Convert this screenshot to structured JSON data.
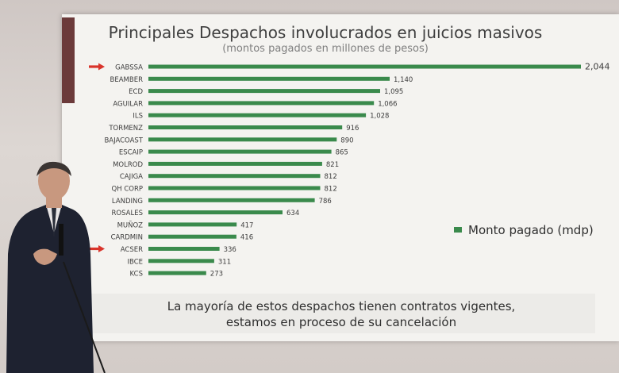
{
  "chart_data": {
    "type": "bar",
    "orientation": "horizontal",
    "title": "Principales Despachos involucrados en juicios masivos",
    "subtitle": "(montos pagados en millones de pesos)",
    "categories": [
      "GABSSA",
      "BEAMBER",
      "ECD",
      "AGUILAR",
      "ILS",
      "TORMENZ",
      "BAJACOAST",
      "ESCAIP",
      "MOLROD",
      "CAJIGA",
      "QH CORP",
      "LANDING",
      "ROSALES",
      "MUÑOZ",
      "CARDMIN",
      "ACSER",
      "IBCE",
      "KCS"
    ],
    "values": [
      2044,
      1140,
      1095,
      1066,
      1028,
      916,
      890,
      865,
      821,
      812,
      812,
      786,
      634,
      417,
      416,
      336,
      311,
      273
    ],
    "value_labels": [
      "2,044",
      "1,140",
      "1,095",
      "1,066",
      "1,028",
      "916",
      "890",
      "865",
      "821",
      "812",
      "812",
      "786",
      "634",
      "417",
      "416",
      "336",
      "311",
      "273"
    ],
    "series": [
      {
        "name": "Monto pagado (mdp)",
        "color": "#3a8a4c"
      }
    ],
    "legend": {
      "label": "Monto pagado (mdp)",
      "placement": "right"
    },
    "highlighted": [
      "GABSSA",
      "ACSER"
    ],
    "highlight_marker": "red-arrow-icon",
    "grid": false
  },
  "footer": {
    "line1": "La mayoría de estos despachos tienen contratos vigentes,",
    "line2": "estamos en proceso de su cancelación"
  },
  "colors": {
    "bar": "#3a8a4c",
    "arrow": "#d9342b",
    "label": "#3c3c3c"
  }
}
